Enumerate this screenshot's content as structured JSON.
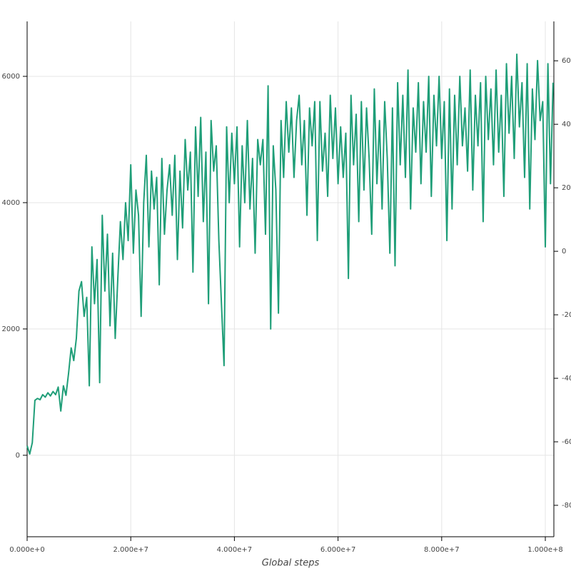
{
  "chart_data": {
    "type": "line",
    "x_label": "Global steps",
    "x": [
      0,
      500000,
      1000000,
      1500000,
      2000000,
      2500000,
      3000000,
      3500000,
      4000000,
      4500000,
      5000000,
      5500000,
      6000000,
      6500000,
      7000000,
      7500000,
      8000000,
      8500000,
      9000000,
      9500000,
      10000000,
      10500000,
      11000000,
      11500000,
      12000000,
      12500000,
      13000000,
      13500000,
      14000000,
      14500000,
      15000000,
      15500000,
      16000000,
      16500000,
      17000000,
      17500000,
      18000000,
      18500000,
      19000000,
      19500000,
      20000000,
      20500000,
      21000000,
      21500000,
      22000000,
      22500000,
      23000000,
      23500000,
      24000000,
      24500000,
      25000000,
      25500000,
      26000000,
      26500000,
      27000000,
      27500000,
      28000000,
      28500000,
      29000000,
      29500000,
      30000000,
      30500000,
      31000000,
      31500000,
      32000000,
      32500000,
      33000000,
      33500000,
      34000000,
      34500000,
      35000000,
      35500000,
      36000000,
      36500000,
      37000000,
      37500000,
      38000000,
      38500000,
      39000000,
      39500000,
      40000000,
      40500000,
      41000000,
      41500000,
      42000000,
      42500000,
      43000000,
      43500000,
      44000000,
      44500000,
      45000000,
      45500000,
      46000000,
      46500000,
      47000000,
      47500000,
      48000000,
      48500000,
      49000000,
      49500000,
      50000000,
      50500000,
      51000000,
      51500000,
      52000000,
      52500000,
      53000000,
      53500000,
      54000000,
      54500000,
      55000000,
      55500000,
      56000000,
      56500000,
      57000000,
      57500000,
      58000000,
      58500000,
      59000000,
      59500000,
      60000000,
      60500000,
      61000000,
      61500000,
      62000000,
      62500000,
      63000000,
      63500000,
      64000000,
      64500000,
      65000000,
      65500000,
      66000000,
      66500000,
      67000000,
      67500000,
      68000000,
      68500000,
      69000000,
      69500000,
      70000000,
      70500000,
      71000000,
      71500000,
      72000000,
      72500000,
      73000000,
      73500000,
      74000000,
      74500000,
      75000000,
      75500000,
      76000000,
      76500000,
      77000000,
      77500000,
      78000000,
      78500000,
      79000000,
      79500000,
      80000000,
      80500000,
      81000000,
      81500000,
      82000000,
      82500000,
      83000000,
      83500000,
      84000000,
      84500000,
      85000000,
      85500000,
      86000000,
      86500000,
      87000000,
      87500000,
      88000000,
      88500000,
      89000000,
      89500000,
      90000000,
      90500000,
      91000000,
      91500000,
      92000000,
      92500000,
      93000000,
      93500000,
      94000000,
      94500000,
      95000000,
      95500000,
      96000000,
      96500000,
      97000000,
      97500000,
      98000000,
      98500000,
      99000000,
      99500000,
      100000000,
      100500000,
      101000000,
      101500000
    ],
    "series": [
      {
        "color": "#1f9e78",
        "values": [
          150,
          20,
          200,
          870,
          900,
          880,
          960,
          920,
          990,
          940,
          1010,
          960,
          1080,
          700,
          1100,
          950,
          1300,
          1700,
          1500,
          1850,
          2600,
          2750,
          2200,
          2500,
          1100,
          3300,
          2400,
          3100,
          1150,
          3800,
          2600,
          3500,
          2050,
          3200,
          1850,
          2800,
          3700,
          3100,
          4000,
          3400,
          4600,
          3200,
          4200,
          3800,
          2200,
          4000,
          4750,
          3300,
          4500,
          3900,
          4400,
          2700,
          4700,
          3500,
          4200,
          4600,
          3800,
          4750,
          3100,
          4500,
          3600,
          5000,
          4200,
          4800,
          2900,
          5200,
          4100,
          5350,
          3700,
          4800,
          2400,
          5300,
          4500,
          4900,
          3400,
          2400,
          1420,
          5200,
          4000,
          5100,
          4300,
          5200,
          3300,
          4900,
          4000,
          5300,
          3900,
          4700,
          3200,
          5000,
          4600,
          5000,
          3500,
          5850,
          2000,
          4900,
          4200,
          2250,
          5300,
          4400,
          5600,
          4800,
          5500,
          4400,
          5300,
          5700,
          4600,
          5300,
          3800,
          5500,
          4900,
          5600,
          3400,
          5600,
          4500,
          5100,
          4100,
          5700,
          4700,
          5500,
          4300,
          5200,
          4400,
          5100,
          2800,
          5700,
          4600,
          5400,
          3700,
          5600,
          4200,
          5500,
          4700,
          3500,
          5800,
          4300,
          5300,
          3900,
          5600,
          4700,
          3200,
          5500,
          3000,
          5900,
          4600,
          5700,
          4400,
          6100,
          3900,
          5500,
          4800,
          5900,
          4300,
          5600,
          4800,
          6000,
          4100,
          5700,
          4900,
          6000,
          4700,
          5600,
          3400,
          5800,
          3900,
          5700,
          4600,
          6000,
          4900,
          5500,
          4500,
          6100,
          4200,
          5700,
          4900,
          5900,
          3700,
          6000,
          5000,
          5800,
          4600,
          6100,
          4800,
          5700,
          4100,
          6200,
          5100,
          6000,
          4700,
          6350,
          5200,
          5900,
          4400,
          6200,
          3900,
          5800,
          5000,
          6250,
          5300,
          5600,
          3300,
          6200,
          4300,
          5900
        ]
      }
    ],
    "xlim": [
      0,
      101650000
    ],
    "xticks": [
      {
        "value": 0,
        "label": "0.000e+0"
      },
      {
        "value": 20000000,
        "label": "2.000e+7"
      },
      {
        "value": 40000000,
        "label": "4.000e+7"
      },
      {
        "value": 60000000,
        "label": "6.000e+7"
      },
      {
        "value": 80000000,
        "label": "8.000e+7"
      },
      {
        "value": 100000000,
        "label": "1.000e+8"
      }
    ],
    "ylim": [
      -1290,
      6870
    ],
    "yticks": [
      0,
      2000,
      4000,
      6000
    ],
    "y2lim": [
      -89.9,
      72.4
    ],
    "y2ticks": [
      -80,
      -60,
      -40,
      -20,
      0,
      20,
      40,
      60
    ],
    "grid": true
  }
}
